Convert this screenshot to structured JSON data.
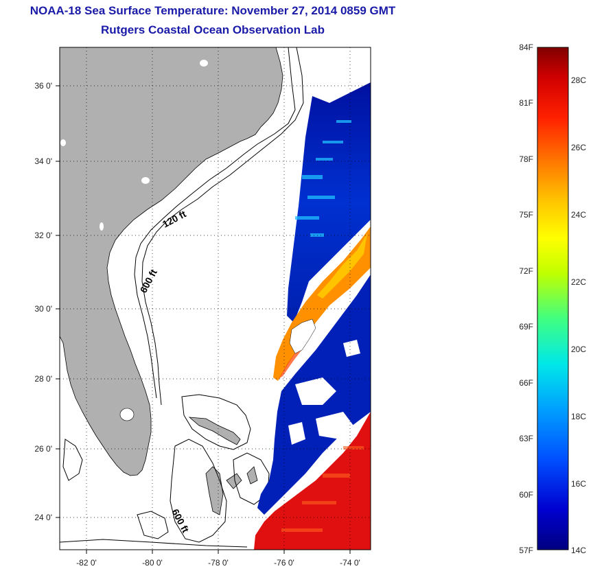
{
  "title": {
    "line1": "NOAA-18 Sea Surface Temperature:  November 27, 2014 0859 GMT",
    "line2": "Rutgers Coastal Ocean Observation Lab"
  },
  "map": {
    "lon_labels": [
      "-82 0'",
      "-80 0'",
      "-78 0'",
      "-76 0'",
      "-74 0'"
    ],
    "lat_labels": [
      "36 0'",
      "34 0'",
      "32 0'",
      "30 0'",
      "28 0'",
      "26 0'",
      "24 0'"
    ],
    "contour_labels": [
      "120 ft",
      "600 ft",
      "600 ft"
    ],
    "land_color": "#b0b0b0",
    "ocean_color": "#ffffff"
  },
  "colorbar": {
    "f_labels": [
      "84F",
      "81F",
      "78F",
      "75F",
      "72F",
      "69F",
      "66F",
      "63F",
      "60F",
      "57F"
    ],
    "c_labels": [
      "28C",
      "26C",
      "24C",
      "22C",
      "20C",
      "18C",
      "16C",
      "14C"
    ],
    "colors": [
      "#000080",
      "#0000d0",
      "#0050ff",
      "#00a0ff",
      "#00e8e8",
      "#40ff80",
      "#c0ff00",
      "#ffff00",
      "#ffc000",
      "#ff7000",
      "#ff2000",
      "#d00000",
      "#800000"
    ]
  }
}
